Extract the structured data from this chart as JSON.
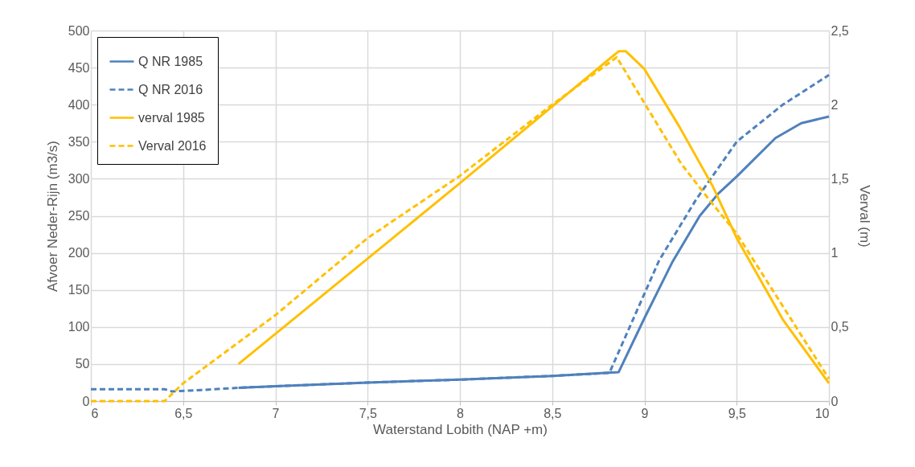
{
  "chart_data": {
    "type": "line",
    "xlabel": "Waterstand Lobith (NAP +m)",
    "ylabel": "Afvoer Neder-Rijn (m3/s)",
    "y2label": "Verval (m)",
    "xlim": [
      6,
      10
    ],
    "xticks": [
      6,
      {
        "value": 6.5,
        "label": "6,5"
      },
      7,
      {
        "value": 7.5,
        "label": "7,5"
      },
      8,
      {
        "value": 8.5,
        "label": "8,5"
      },
      9,
      {
        "value": 9.5,
        "label": "9,5"
      },
      10
    ],
    "ylim": [
      0,
      500
    ],
    "yticks": [
      0,
      50,
      100,
      150,
      200,
      250,
      300,
      350,
      400,
      450,
      500
    ],
    "y2lim": [
      0,
      2.5
    ],
    "y2ticks": [
      0,
      {
        "value": 0.5,
        "label": "0,5"
      },
      1,
      {
        "value": 1.5,
        "label": "1,5"
      },
      2,
      {
        "value": 2.5,
        "label": "2,5"
      }
    ],
    "grid": true,
    "legend": "top left",
    "marker": "none",
    "series": [
      {
        "name": "Q NR 1985",
        "color": "#4f81bd",
        "line_style": "solid",
        "x": [
          6.8,
          7,
          7.5,
          8,
          8.5,
          8.86,
          9,
          9.15,
          9.3,
          9.4,
          9.5,
          9.71,
          9.85,
          10
        ],
        "values": [
          18,
          20,
          25,
          29,
          34,
          39,
          112,
          187,
          250,
          280,
          303,
          355,
          375,
          384
        ]
      },
      {
        "name": "Q NR 2016",
        "color": "#4f81bd",
        "line_style": "dashed",
        "x": [
          6,
          6.4,
          6.44,
          6.6,
          6.8,
          7,
          7.5,
          8,
          8.5,
          8.81,
          9,
          9.08,
          9.28,
          9.5,
          9.75,
          10
        ],
        "values": [
          16,
          16,
          13,
          15,
          18,
          20,
          25,
          29,
          34,
          38,
          145,
          190,
          272,
          350,
          400,
          440
        ]
      },
      {
        "name": "verval 1985",
        "color": "#ffc000",
        "line_style": "solid",
        "axis": "y2",
        "x": [
          6.8,
          8,
          8.86,
          8.9,
          9,
          9.19,
          9.37,
          9.5,
          9.75,
          10
        ],
        "values": [
          0.25,
          1.47,
          2.36,
          2.36,
          2.24,
          1.85,
          1.45,
          1.1,
          0.55,
          0.12
        ]
      },
      {
        "name": "Verval 2016",
        "color": "#ffc000",
        "line_style": "dashed",
        "axis": "y2",
        "x": [
          6,
          6.4,
          6.5,
          7,
          7.5,
          8,
          8.5,
          8.85,
          9,
          9.2,
          9.35,
          9.5,
          10
        ],
        "values": [
          0,
          0,
          0.12,
          0.58,
          1.1,
          1.52,
          2.0,
          2.32,
          2.01,
          1.6,
          1.36,
          1.13,
          0.15
        ]
      }
    ]
  }
}
